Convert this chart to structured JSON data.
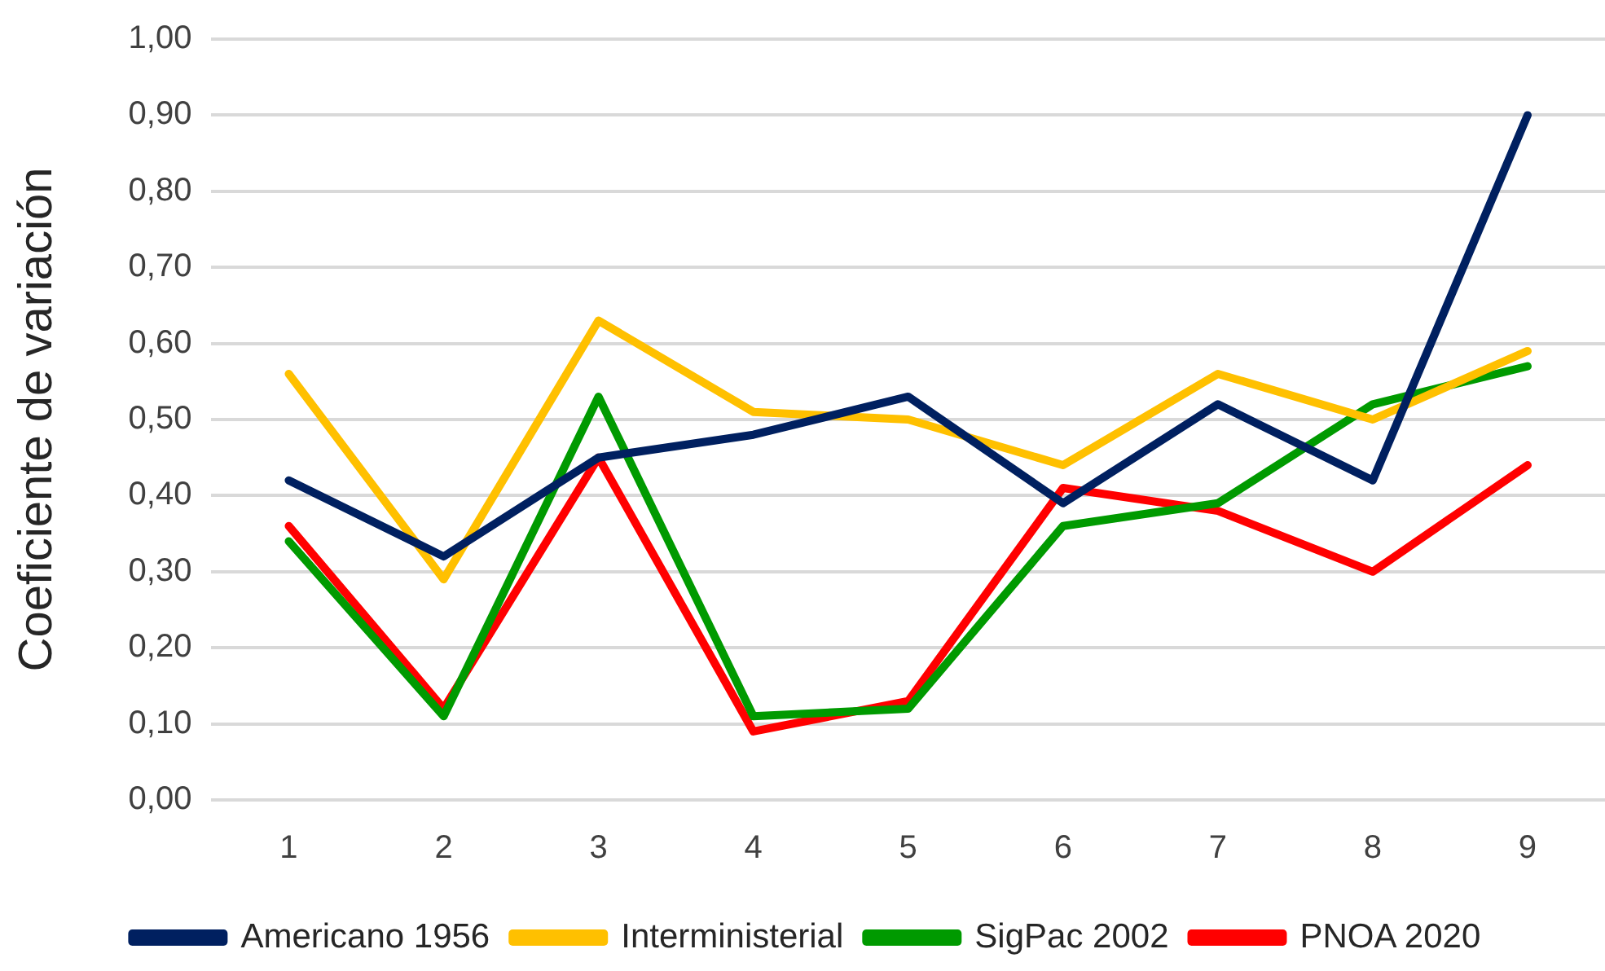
{
  "chart_data": {
    "type": "line",
    "ylabel": "Coeficiente de variación",
    "categories": [
      "1",
      "2",
      "3",
      "4",
      "5",
      "6",
      "7",
      "8",
      "9"
    ],
    "series": [
      {
        "name": "Americano 1956",
        "color": "#002060",
        "values": [
          0.42,
          0.32,
          0.45,
          0.48,
          0.53,
          0.39,
          0.52,
          0.42,
          0.9
        ]
      },
      {
        "name": "Interministerial",
        "color": "#ffc000",
        "values": [
          0.56,
          0.29,
          0.63,
          0.51,
          0.5,
          0.44,
          0.56,
          0.5,
          0.59
        ]
      },
      {
        "name": "SigPac 2002",
        "color": "#009a00",
        "values": [
          0.34,
          0.11,
          0.53,
          0.11,
          0.12,
          0.36,
          0.39,
          0.52,
          0.57
        ]
      },
      {
        "name": "PNOA 2020",
        "color": "#ff0000",
        "values": [
          0.36,
          0.12,
          0.45,
          0.09,
          0.13,
          0.41,
          0.38,
          0.3,
          0.44
        ]
      }
    ],
    "ylim": [
      0,
      1
    ],
    "yticks": [
      {
        "value": 0,
        "label": "0,00"
      },
      {
        "value": 0.1,
        "label": "0,10"
      },
      {
        "value": 0.2,
        "label": "0,20"
      },
      {
        "value": 0.3,
        "label": "0,30"
      },
      {
        "value": 0.4,
        "label": "0,40"
      },
      {
        "value": 0.5,
        "label": "0,50"
      },
      {
        "value": 0.6,
        "label": "0,60"
      },
      {
        "value": 0.7,
        "label": "0,70"
      },
      {
        "value": 0.8,
        "label": "0,80"
      },
      {
        "value": 0.9,
        "label": "0,90"
      },
      {
        "value": 1,
        "label": "1,00"
      }
    ],
    "grid": "y",
    "legend": "bottom",
    "line_style": "solid"
  }
}
